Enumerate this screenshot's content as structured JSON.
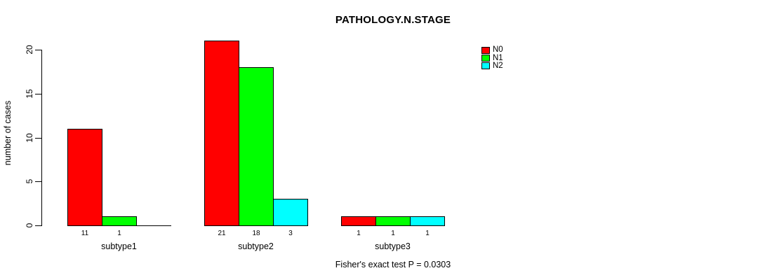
{
  "chart_data": {
    "type": "bar",
    "title": "PATHOLOGY.N.STAGE",
    "ylabel": "number of cases",
    "xlabel": "",
    "categories": [
      "subtype1",
      "subtype2",
      "subtype3"
    ],
    "series": [
      {
        "name": "N0",
        "color": "#FF0000",
        "values": [
          11,
          21,
          1
        ]
      },
      {
        "name": "N1",
        "color": "#00FF00",
        "values": [
          1,
          18,
          1
        ]
      },
      {
        "name": "N2",
        "color": "#00FFFF",
        "values": [
          0,
          3,
          1
        ]
      }
    ],
    "bar_value_labels": [
      [
        "11",
        "1",
        ""
      ],
      [
        "21",
        "18",
        "3"
      ],
      [
        "1",
        "1",
        "1"
      ]
    ],
    "yticks": [
      0,
      5,
      10,
      15,
      20
    ],
    "ylim": [
      0,
      21
    ],
    "grid": false,
    "legend_position": "top-right",
    "legend_box": false,
    "footer": "Fisher's exact test P = 0.0303",
    "background": "#ffffff",
    "axis_color": "#000000"
  }
}
